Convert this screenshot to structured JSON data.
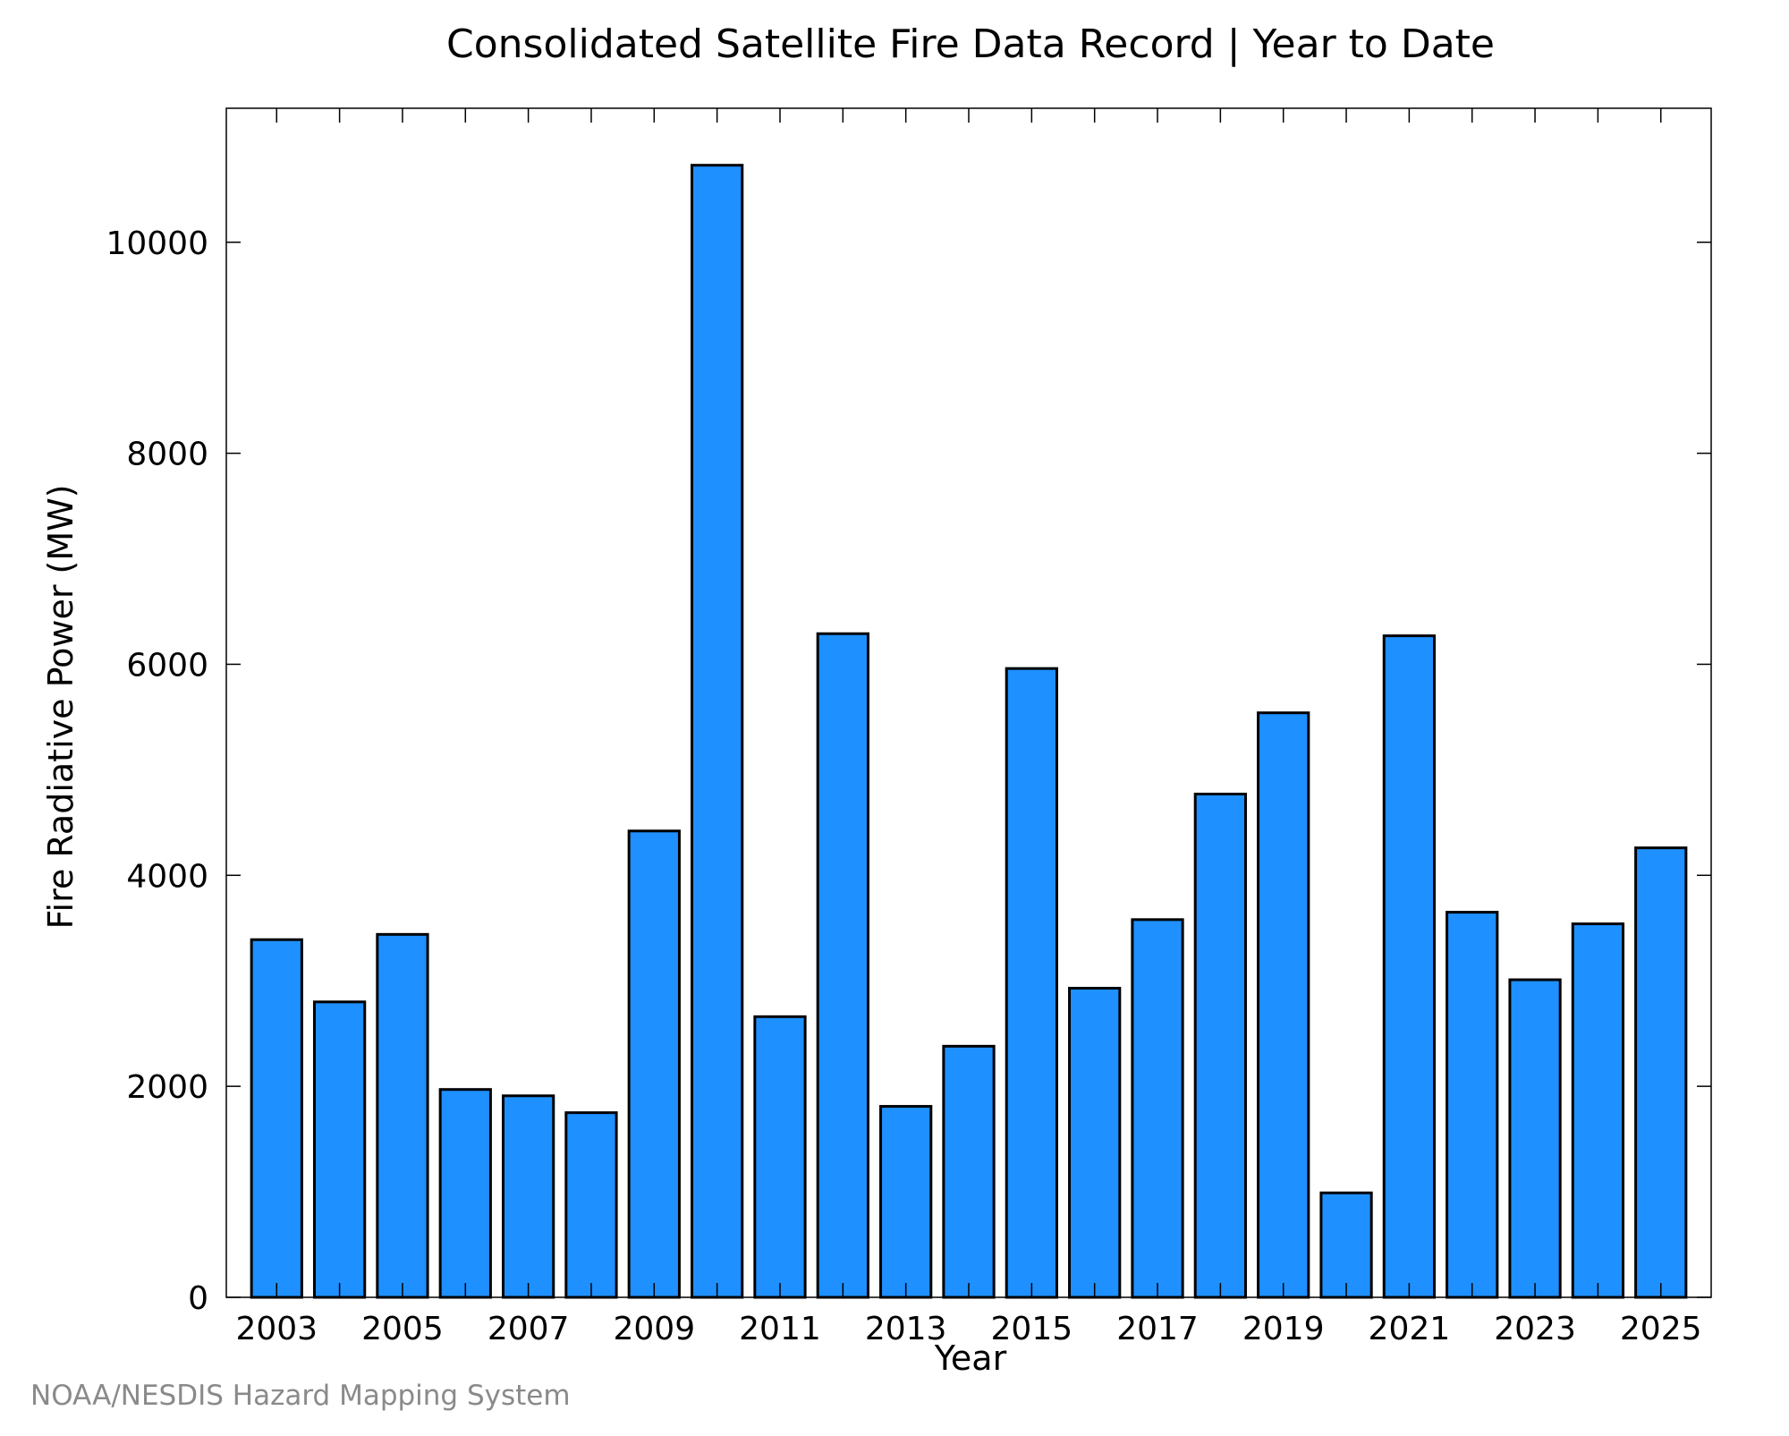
{
  "chart_data": {
    "type": "bar",
    "title": "Consolidated Satellite Fire Data Record | Year to Date",
    "xlabel": "Year",
    "ylabel": "Fire Radiative Power (MW)",
    "categories": [
      "2003",
      "2004",
      "2005",
      "2006",
      "2007",
      "2008",
      "2009",
      "2010",
      "2011",
      "2012",
      "2013",
      "2014",
      "2015",
      "2016",
      "2017",
      "2018",
      "2019",
      "2020",
      "2021",
      "2022",
      "2023",
      "2024",
      "2025"
    ],
    "values": [
      3390,
      2800,
      3440,
      1970,
      1910,
      1750,
      4420,
      10730,
      2660,
      6290,
      1810,
      2380,
      5960,
      2930,
      3580,
      4770,
      5540,
      990,
      6270,
      3650,
      3010,
      3540,
      4260
    ],
    "xtick_labels": [
      "2003",
      "2005",
      "2007",
      "2009",
      "2011",
      "2013",
      "2015",
      "2017",
      "2019",
      "2021",
      "2023",
      "2025"
    ],
    "yticks": [
      0,
      2000,
      4000,
      6000,
      8000,
      10000
    ],
    "ylim": [
      0,
      11270
    ],
    "grid": false,
    "bar_color": "#1e90ff",
    "bar_edge_color": "#000000"
  },
  "credit": "NOAA/NESDIS Hazard Mapping System"
}
